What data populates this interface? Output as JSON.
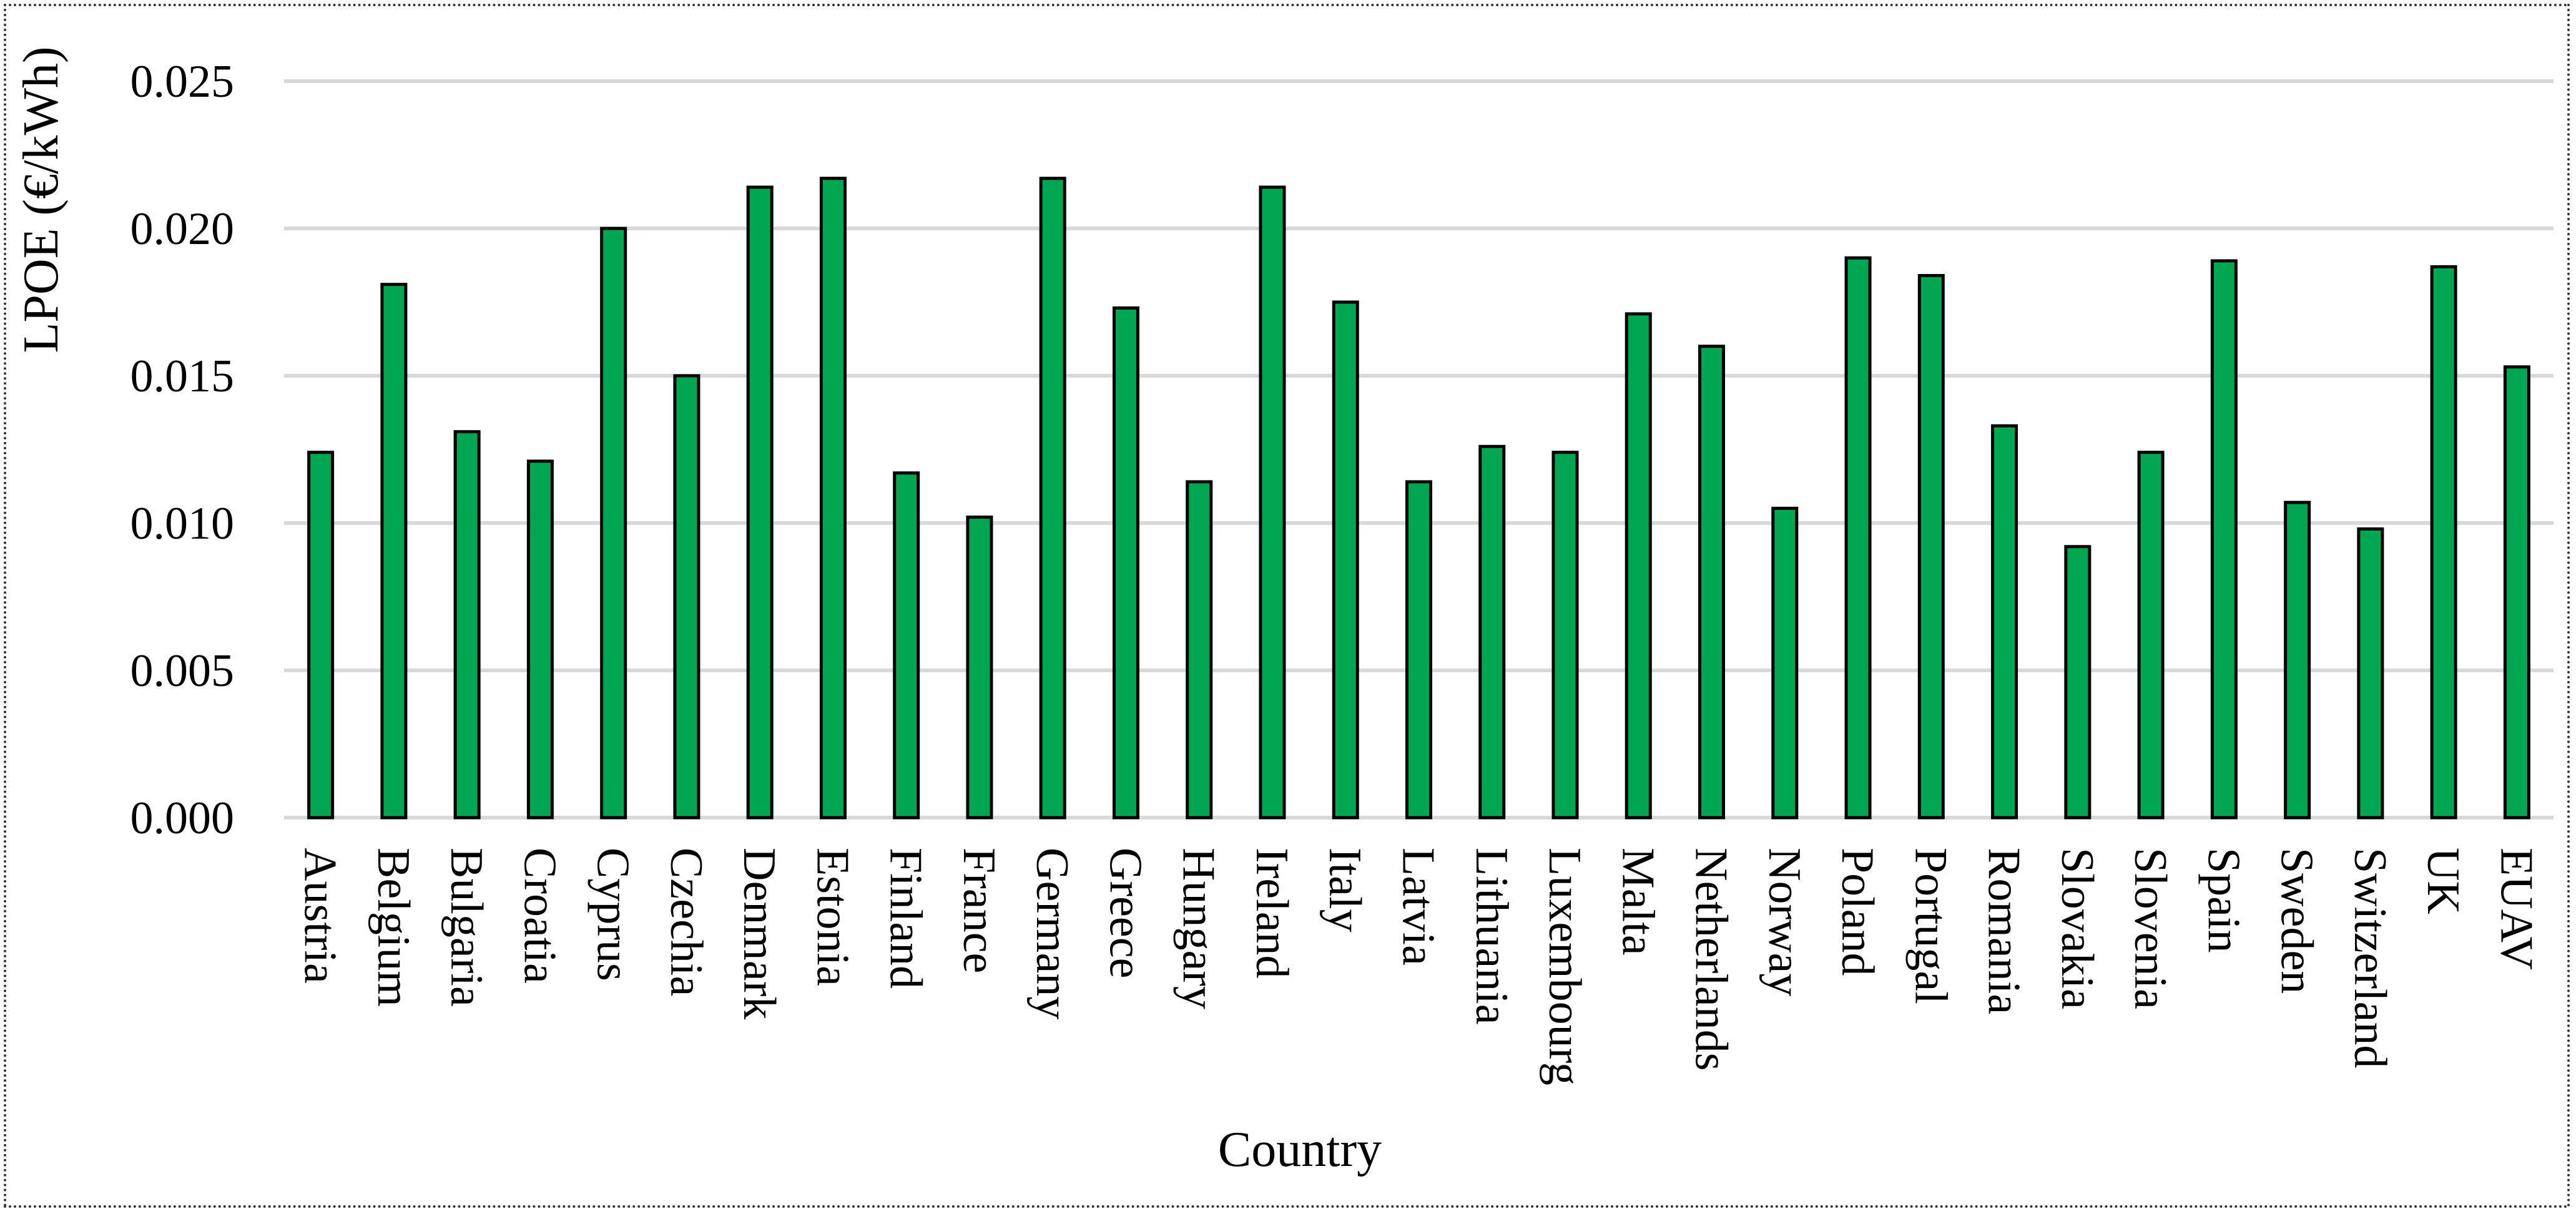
{
  "chart_data": {
    "type": "bar",
    "xlabel": "Country",
    "ylabel": "LPOE (€/kWh)",
    "ylim": [
      0,
      0.025
    ],
    "yticks": [
      "0.000",
      "0.005",
      "0.010",
      "0.015",
      "0.020",
      "0.025"
    ],
    "grid": "horizontal",
    "legend": "none",
    "bar_color": "#00a651",
    "bar_edge_color": "#000000",
    "categories": [
      "Austria",
      "Belgium",
      "Bulgaria",
      "Croatia",
      "Cyprus",
      "Czechia",
      "Denmark",
      "Estonia",
      "Finland",
      "France",
      "Germany",
      "Greece",
      "Hungary",
      "Ireland",
      "Italy",
      "Latvia",
      "Lithuania",
      "Luxembourg",
      "Malta",
      "Netherlands",
      "Norway",
      "Poland",
      "Portugal",
      "Romania",
      "Slovakia",
      "Slovenia",
      "Spain",
      "Sweden",
      "Switzerland",
      "UK",
      "EUAV"
    ],
    "values": [
      0.0124,
      0.0181,
      0.0131,
      0.0121,
      0.02,
      0.015,
      0.0214,
      0.0217,
      0.0117,
      0.0102,
      0.0217,
      0.0173,
      0.0114,
      0.0214,
      0.0175,
      0.0114,
      0.0126,
      0.0124,
      0.0171,
      0.016,
      0.0105,
      0.019,
      0.0184,
      0.0133,
      0.0092,
      0.0124,
      0.0189,
      0.0107,
      0.0098,
      0.0187,
      0.0153
    ]
  }
}
